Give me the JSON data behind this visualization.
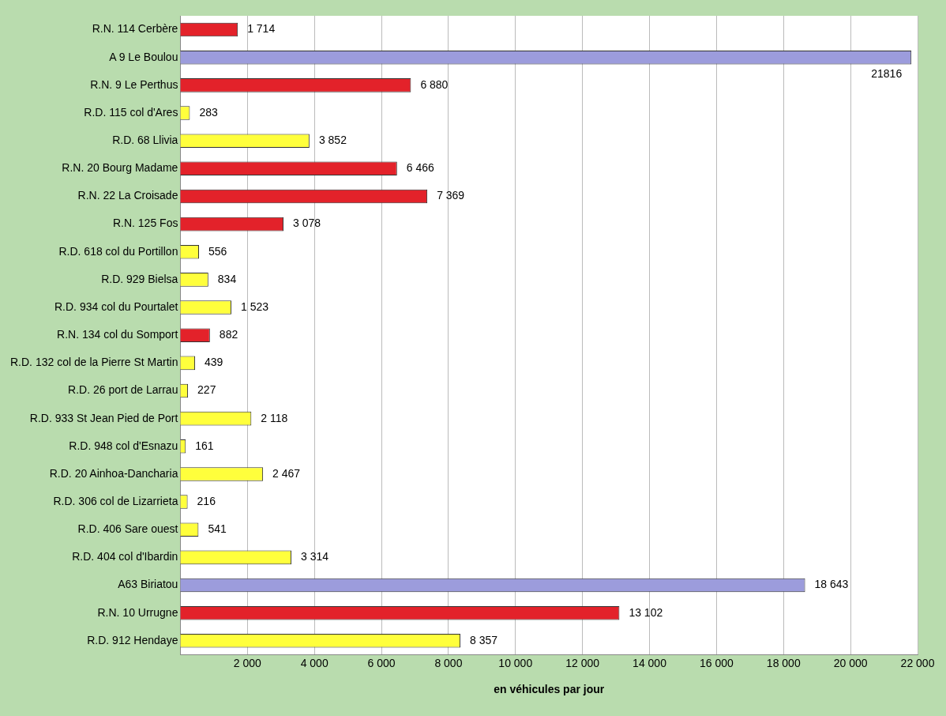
{
  "chart_data": {
    "type": "bar",
    "orientation": "horizontal",
    "xlabel": "en véhicules par jour",
    "categories": [
      "R.N. 114 Cerbère",
      "A 9 Le Boulou",
      "R.N. 9 Le Perthus",
      "R.D. 115 col d'Ares",
      "R.D. 68 Llivia",
      "R.N. 20 Bourg Madame",
      "R.N. 22 La Croisade",
      "R.N. 125 Fos",
      "R.D. 618 col du Portillon",
      "R.D. 929 Bielsa",
      "R.D. 934 col du Pourtalet",
      "R.N. 134 col du Somport",
      "R.D. 132 col de la Pierre St Martin",
      "R.D. 26 port de Larrau",
      "R.D. 933 St Jean Pied de Port",
      "R.D. 948 col d'Esnazu",
      "R.D. 20 Ainhoa-Dancharia",
      "R.D. 306 col de Lizarrieta",
      "R.D. 406 Sare ouest",
      "R.D. 404 col d'Ibardin",
      "A63 Biriatou",
      "R.N. 10 Urrugne",
      "R.D. 912 Hendaye"
    ],
    "values": [
      1714,
      21816,
      6880,
      283,
      3852,
      6466,
      7369,
      3078,
      556,
      834,
      1523,
      882,
      439,
      227,
      2118,
      161,
      2467,
      216,
      541,
      3314,
      18643,
      13102,
      8357
    ],
    "value_labels": [
      "1 714",
      "21816",
      "6 880",
      "283",
      "3 852",
      "6 466",
      "7 369",
      "3 078",
      "556",
      "834",
      "1 523",
      "882",
      "439",
      "227",
      "2 118",
      "161",
      "2 467",
      "216",
      "541",
      "3 314",
      "18 643",
      "13 102",
      "8 357"
    ],
    "colors": [
      "#e3222a",
      "#9c9cdc",
      "#e3222a",
      "#ffff3c",
      "#ffff3c",
      "#e3222a",
      "#e3222a",
      "#e3222a",
      "#ffff3c",
      "#ffff3c",
      "#ffff3c",
      "#e3222a",
      "#ffff3c",
      "#ffff3c",
      "#ffff3c",
      "#ffff3c",
      "#ffff3c",
      "#ffff3c",
      "#ffff3c",
      "#ffff3c",
      "#9c9cdc",
      "#e3222a",
      "#ffff3c"
    ],
    "xlim": [
      0,
      22000
    ],
    "xticks": [
      {
        "value": 2000,
        "label": "2 000"
      },
      {
        "value": 4000,
        "label": "4 000"
      },
      {
        "value": 6000,
        "label": "6 000"
      },
      {
        "value": 8000,
        "label": "8 000"
      },
      {
        "value": 10000,
        "label": "10 000"
      },
      {
        "value": 12000,
        "label": "12 000"
      },
      {
        "value": 14000,
        "label": "14 000"
      },
      {
        "value": 16000,
        "label": "16 000"
      },
      {
        "value": 18000,
        "label": "18 000"
      },
      {
        "value": 20000,
        "label": "20 000"
      },
      {
        "value": 22000,
        "label": "22 000"
      }
    ],
    "grid": "x"
  }
}
